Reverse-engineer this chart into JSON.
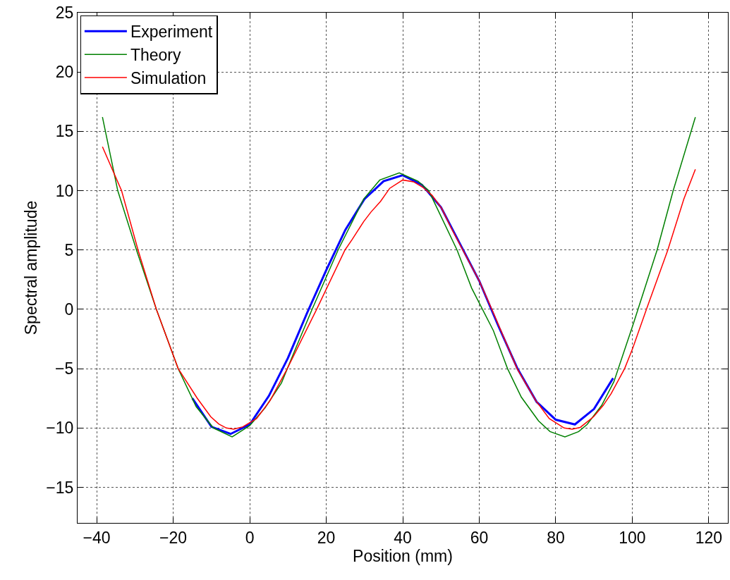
{
  "chart_data": {
    "type": "line",
    "xlabel": "Position (mm)",
    "ylabel": "Spectral amplitude",
    "xlim": [
      -45,
      125
    ],
    "ylim": [
      -18,
      25
    ],
    "xticks": [
      {
        "value": -40,
        "label": "−40"
      },
      {
        "value": -20,
        "label": "−20"
      },
      0,
      20,
      40,
      60,
      80,
      100,
      120
    ],
    "yticks": [
      {
        "value": -15,
        "label": "−15"
      },
      {
        "value": -10,
        "label": "−10"
      },
      {
        "value": -5,
        "label": "−5"
      },
      0,
      5,
      10,
      15,
      20,
      25
    ],
    "grid": true,
    "legend": "top left",
    "line_style": "solid",
    "marker": "none",
    "series": [
      {
        "name": "Experiment",
        "color": "#0000ff",
        "x": [
          -15,
          -10,
          -5,
          0,
          5,
          10,
          15,
          20,
          25,
          30,
          35,
          40,
          45,
          50,
          55,
          60,
          65,
          70,
          75,
          80,
          85,
          90,
          95
        ],
        "values": [
          -7.5,
          -9.9,
          -10.5,
          -9.7,
          -7.3,
          -4.1,
          -0.3,
          3.3,
          6.7,
          9.3,
          10.8,
          11.3,
          10.5,
          8.6,
          5.5,
          2.4,
          -1.4,
          -5.0,
          -7.8,
          -9.3,
          -9.7,
          -8.4,
          -5.8
        ]
      },
      {
        "name": "Theory",
        "color": "#008000",
        "x": [
          -38.5,
          -34.5,
          -29.6,
          -24.4,
          -18.7,
          -14,
          -9.5,
          -4.6,
          0,
          4,
          8.3,
          12,
          16.3,
          23.1,
          29.8,
          34,
          39.1,
          44,
          46.8,
          54.2,
          58,
          63.7,
          67.4,
          71,
          75.5,
          78.5,
          82.4,
          86,
          88.2,
          92,
          95.2,
          100.1,
          106.5,
          110.7,
          116.5
        ],
        "values": [
          16.2,
          10,
          5,
          0,
          -5,
          -8.2,
          -10,
          -10.75,
          -9.8,
          -8.3,
          -6.2,
          -3.3,
          0,
          5,
          9.3,
          10.9,
          11.5,
          10.8,
          10,
          5,
          1.8,
          -1.8,
          -5,
          -7.4,
          -9.4,
          -10.3,
          -10.75,
          -10.3,
          -9.7,
          -8.1,
          -6.1,
          -1.4,
          5,
          10,
          16.2
        ]
      },
      {
        "name": "Simulation",
        "color": "#ff0000",
        "x": [
          -38.5,
          -33.5,
          -29.2,
          -24.4,
          -18.7,
          -13.7,
          -10.2,
          -8.1,
          -6.1,
          -4.2,
          -1.8,
          1.8,
          5.3,
          9.5,
          17.5,
          24.9,
          26.8,
          29.8,
          31.7,
          34.2,
          36.6,
          40,
          42.8,
          45.2,
          47.7,
          50.2,
          52.6,
          55.7,
          60,
          63.7,
          69.9,
          74.8,
          78.3,
          82.2,
          84.3,
          86.4,
          89.9,
          92.4,
          94.5,
          98,
          100.1,
          103.7,
          109.3,
          113.5,
          116.5
        ],
        "values": [
          13.7,
          10,
          5,
          0,
          -5,
          -7.5,
          -9.05,
          -9.66,
          -10.0,
          -10.1,
          -9.9,
          -9.2,
          -7.7,
          -5.2,
          0,
          5,
          5.9,
          7.4,
          8.2,
          9.1,
          10.2,
          10.9,
          10.75,
          10.3,
          9.6,
          8.5,
          6.9,
          5,
          2.4,
          -0.3,
          -5,
          -7.7,
          -9.2,
          -10.0,
          -10.1,
          -9.95,
          -9.05,
          -8.1,
          -7.1,
          -5,
          -3.3,
          0,
          5,
          9.3,
          11.8
        ]
      }
    ]
  }
}
